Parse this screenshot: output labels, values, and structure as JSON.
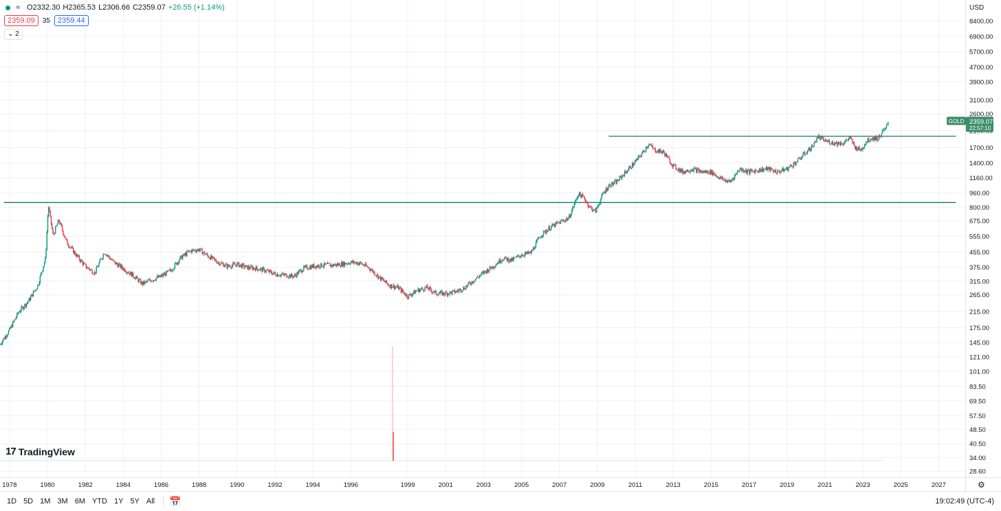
{
  "legend": {
    "open": "O2332.30",
    "high": "H2365.53",
    "low": "L2306.66",
    "close": "C2359.07",
    "change": "+26.55 (+1.14%)"
  },
  "quote": {
    "bid": "2359.09",
    "spread": "35",
    "ask": "2359.44"
  },
  "collapse_label": "2",
  "currency": "USD",
  "logo_text": "TradingView",
  "last_price": {
    "symbol": "GOLD",
    "price": "2359.07",
    "countdown": "22:57:10",
    "color": "#3d8f6a"
  },
  "toolbar": {
    "ranges": [
      "1D",
      "5D",
      "1M",
      "3M",
      "6M",
      "YTD",
      "1Y",
      "5Y",
      "All"
    ],
    "clock": "19:02:49 (UTC-4)"
  },
  "colors": {
    "up": "#089981",
    "down": "#f23645",
    "line": "#0e7a5c",
    "grid": "#eef0f3"
  },
  "chart_data": {
    "type": "candlestick",
    "y_scale": "log",
    "ylim": [
      26.5,
      9200
    ],
    "xlim": [
      1977.5,
      2028.4
    ],
    "y_ticks": [
      "8400.00",
      "6900.00",
      "5700.00",
      "4700.00",
      "3900.00",
      "3100.00",
      "2600.00",
      "2100.00",
      "1700.00",
      "1400.00",
      "1160.00",
      "960.00",
      "800.00",
      "675.00",
      "555.00",
      "455.00",
      "375.00",
      "315.00",
      "265.00",
      "215.00",
      "175.00",
      "145.00",
      "121.00",
      "101.00",
      "83.50",
      "69.50",
      "57.50",
      "48.50",
      "40.50",
      "34.00",
      "28.60"
    ],
    "x_ticks": [
      "1978",
      "1980",
      "1982",
      "1984",
      "1986",
      "1988",
      "1990",
      "1992",
      "1994",
      "1996",
      "1999",
      "2001",
      "2003",
      "2005",
      "2007",
      "2009",
      "2011",
      "2013",
      "2015",
      "2017",
      "2019",
      "2021",
      "2023",
      "2025",
      "2027"
    ],
    "series": [
      {
        "x": [
          1977.5,
          1978.0,
          1978.5,
          1979.0,
          1979.5,
          1979.9,
          1980.05,
          1980.3,
          1980.6,
          1981.0,
          1981.5,
          1982.0,
          1982.5,
          1983.0,
          1983.5,
          1984.0,
          1984.5,
          1985.0,
          1985.5,
          1986.0,
          1986.5,
          1987.0,
          1987.5,
          1988.0,
          1988.5,
          1989.0,
          1989.5,
          1990.0,
          1990.5,
          1991.0,
          1991.5,
          1992.0,
          1992.5,
          1993.0,
          1993.5,
          1994.0,
          1994.5,
          1995.0,
          1995.5,
          1996.0,
          1996.5,
          1997.0,
          1997.5,
          1998.0,
          1998.5,
          1999.0,
          1999.5,
          2000.0,
          2000.5,
          2001.0,
          2001.5,
          2002.0,
          2002.5,
          2003.0,
          2003.5,
          2004.0,
          2004.5,
          2005.0,
          2005.5,
          2006.0,
          2006.5,
          2007.0,
          2007.5,
          2008.0,
          2008.3,
          2008.6,
          2008.9,
          2009.3,
          2009.6,
          2010.0,
          2010.5,
          2011.0,
          2011.4,
          2011.7,
          2012.0,
          2012.5,
          2013.0,
          2013.5,
          2014.0,
          2014.5,
          2015.0,
          2015.5,
          2016.0,
          2016.5,
          2017.0,
          2017.5,
          2018.0,
          2018.5,
          2019.0,
          2019.5,
          2020.0,
          2020.4,
          2020.6,
          2021.0,
          2021.5,
          2022.0,
          2022.3,
          2022.6,
          2022.9,
          2023.2,
          2023.5,
          2023.8,
          2024.0,
          2024.2,
          2024.35
        ],
        "close": [
          142,
          170,
          215,
          245,
          300,
          420,
          820,
          560,
          680,
          520,
          440,
          380,
          350,
          455,
          400,
          370,
          340,
          305,
          320,
          335,
          360,
          420,
          460,
          470,
          430,
          400,
          380,
          390,
          375,
          370,
          360,
          345,
          340,
          335,
          370,
          380,
          385,
          385,
          390,
          400,
          395,
          370,
          330,
          300,
          290,
          260,
          280,
          290,
          270,
          270,
          275,
          290,
          320,
          350,
          380,
          420,
          410,
          440,
          450,
          560,
          620,
          660,
          700,
          950,
          900,
          800,
          760,
          950,
          1050,
          1100,
          1250,
          1420,
          1600,
          1780,
          1650,
          1600,
          1350,
          1250,
          1300,
          1250,
          1250,
          1150,
          1100,
          1300,
          1250,
          1280,
          1300,
          1250,
          1300,
          1420,
          1600,
          1750,
          1950,
          1850,
          1800,
          1800,
          1930,
          1700,
          1650,
          1850,
          1920,
          1900,
          2050,
          2150,
          2359
        ]
      }
    ],
    "annotations": [
      {
        "type": "horizontal-line",
        "y": 850,
        "x_start": 1977.7,
        "x_end": 2027.9
      },
      {
        "type": "horizontal-line",
        "y": 1960,
        "x_start": 2009.6,
        "x_end": 2027.9
      }
    ],
    "volume_spike": {
      "x": 1998.2,
      "label": "volume"
    }
  }
}
